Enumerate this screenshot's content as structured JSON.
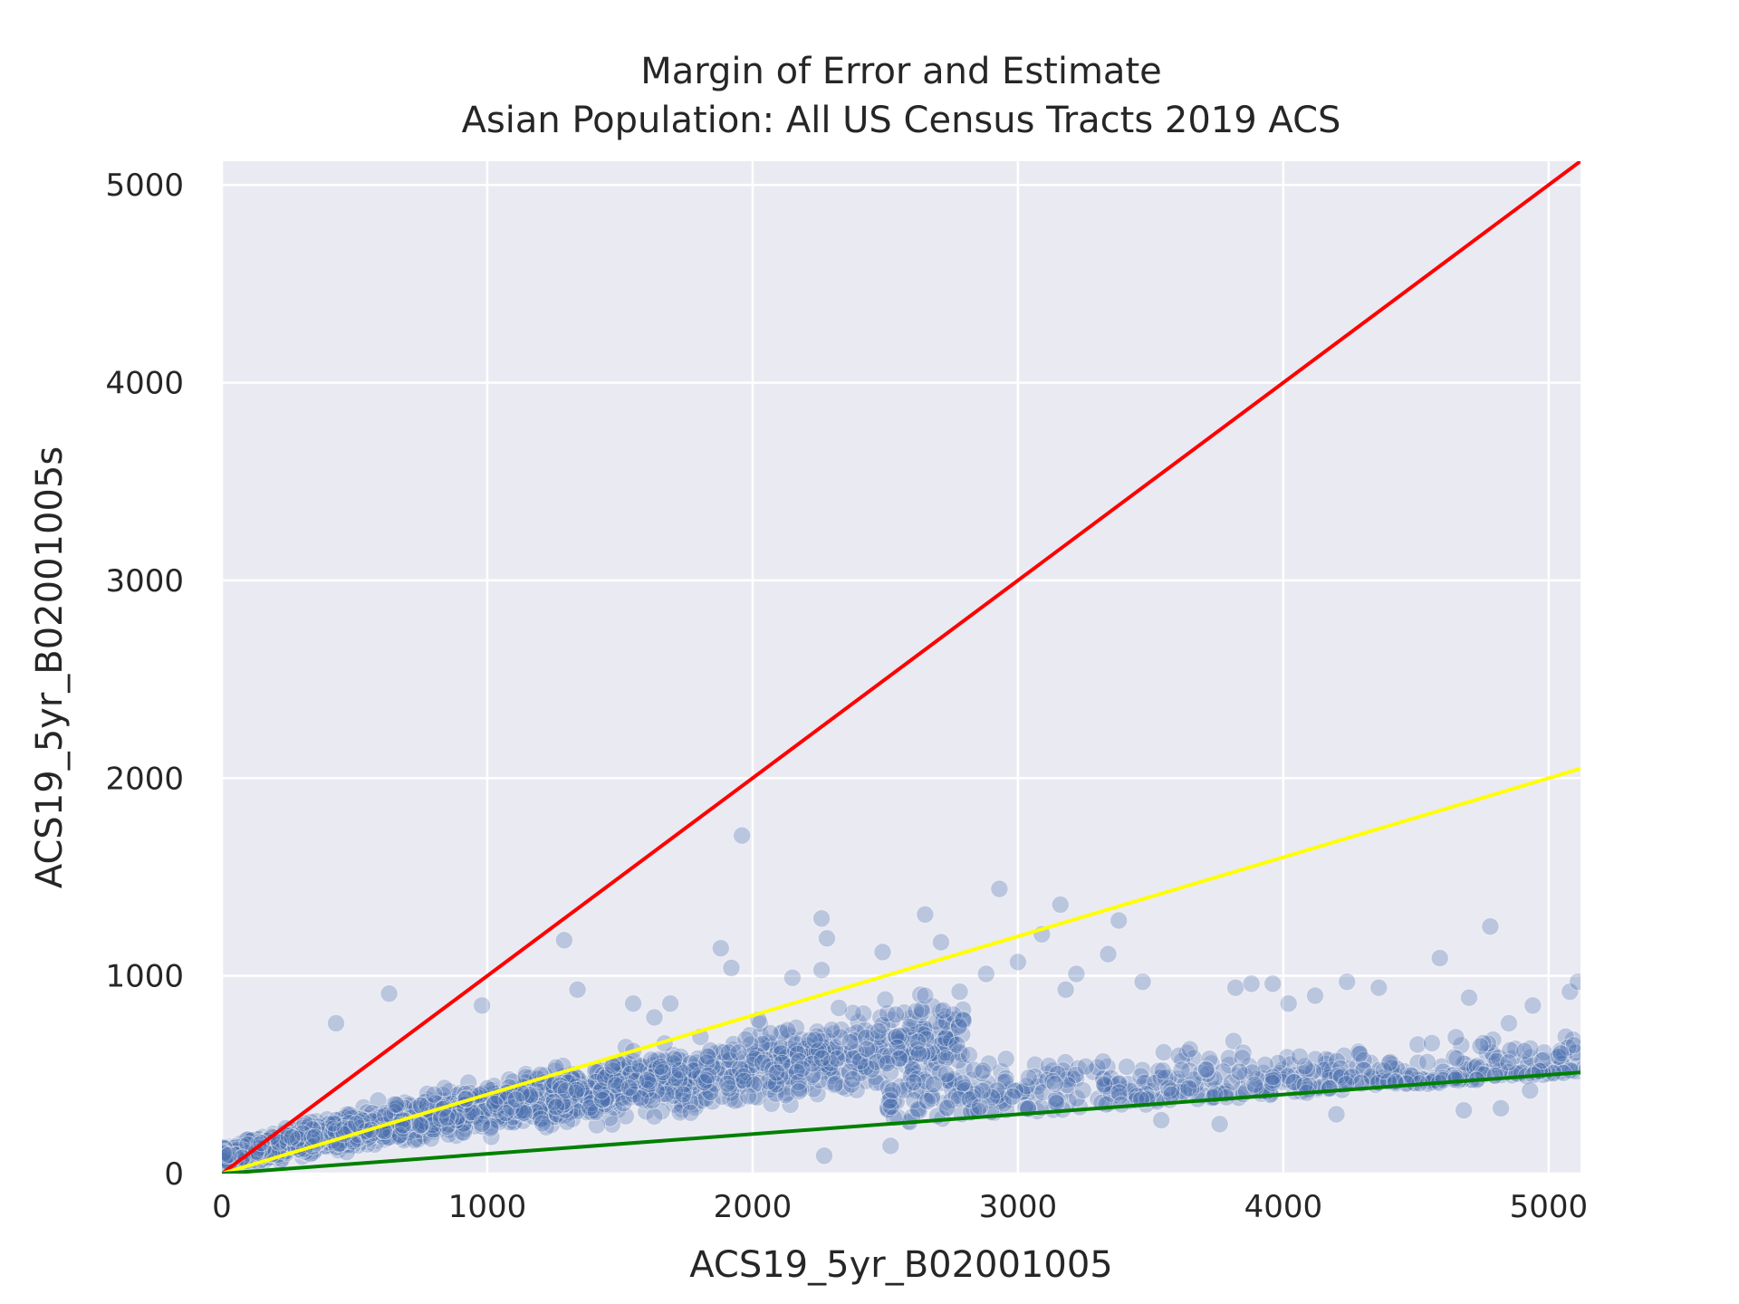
{
  "chart_data": {
    "type": "scatter",
    "title": "Margin of Error and Estimate",
    "subtitle": "Asian Population: All US Census Tracts 2019 ACS",
    "xlabel": "ACS19_5yr_B02001005",
    "ylabel": "ACS19_5yr_B02001005s",
    "xlim": [
      0,
      5120
    ],
    "ylim": [
      0,
      5120
    ],
    "xticks": [
      0,
      1000,
      2000,
      3000,
      4000,
      5000
    ],
    "yticks": [
      0,
      1000,
      2000,
      3000,
      4000,
      5000
    ],
    "grid": true,
    "legend": "none",
    "reference_lines": [
      {
        "slope": 1.0,
        "color": "#ff0000"
      },
      {
        "slope": 0.4,
        "color": "#ffff00"
      },
      {
        "slope": 0.1,
        "color": "#008000"
      }
    ],
    "point_color": "#4c72b0",
    "background_color": "#eaeaf2",
    "notable_points": [
      [
        1960,
        1710
      ],
      [
        2930,
        1440
      ],
      [
        3160,
        1360
      ],
      [
        3380,
        1280
      ],
      [
        2260,
        1290
      ],
      [
        4780,
        1250
      ],
      [
        1290,
        1180
      ],
      [
        2280,
        1190
      ],
      [
        2650,
        1310
      ],
      [
        2710,
        1170
      ],
      [
        3090,
        1210
      ],
      [
        1880,
        1140
      ],
      [
        2490,
        1120
      ],
      [
        3340,
        1110
      ],
      [
        4590,
        1090
      ],
      [
        3000,
        1070
      ],
      [
        1920,
        1040
      ],
      [
        2260,
        1030
      ],
      [
        2150,
        990
      ],
      [
        2880,
        1010
      ],
      [
        3220,
        1010
      ],
      [
        3470,
        970
      ],
      [
        3960,
        960
      ],
      [
        4240,
        970
      ],
      [
        630,
        910
      ],
      [
        980,
        850
      ],
      [
        430,
        760
      ],
      [
        1630,
        790
      ],
      [
        1550,
        860
      ],
      [
        1690,
        860
      ],
      [
        1340,
        930
      ],
      [
        2500,
        880
      ],
      [
        2650,
        900
      ],
      [
        2780,
        920
      ],
      [
        3180,
        930
      ],
      [
        3820,
        940
      ],
      [
        3880,
        960
      ],
      [
        4020,
        860
      ],
      [
        4120,
        900
      ],
      [
        4360,
        940
      ],
      [
        4700,
        890
      ],
      [
        4940,
        850
      ],
      [
        5080,
        920
      ],
      [
        5110,
        970
      ],
      [
        4850,
        760
      ],
      [
        4560,
        660
      ],
      [
        4400,
        560
      ],
      [
        4200,
        300
      ],
      [
        4680,
        320
      ],
      [
        4820,
        330
      ],
      [
        4930,
        420
      ],
      [
        2270,
        90
      ],
      [
        2520,
        140
      ],
      [
        3760,
        250
      ],
      [
        3540,
        270
      ],
      [
        1550,
        620
      ],
      [
        1200,
        500
      ],
      [
        800,
        400
      ]
    ]
  }
}
